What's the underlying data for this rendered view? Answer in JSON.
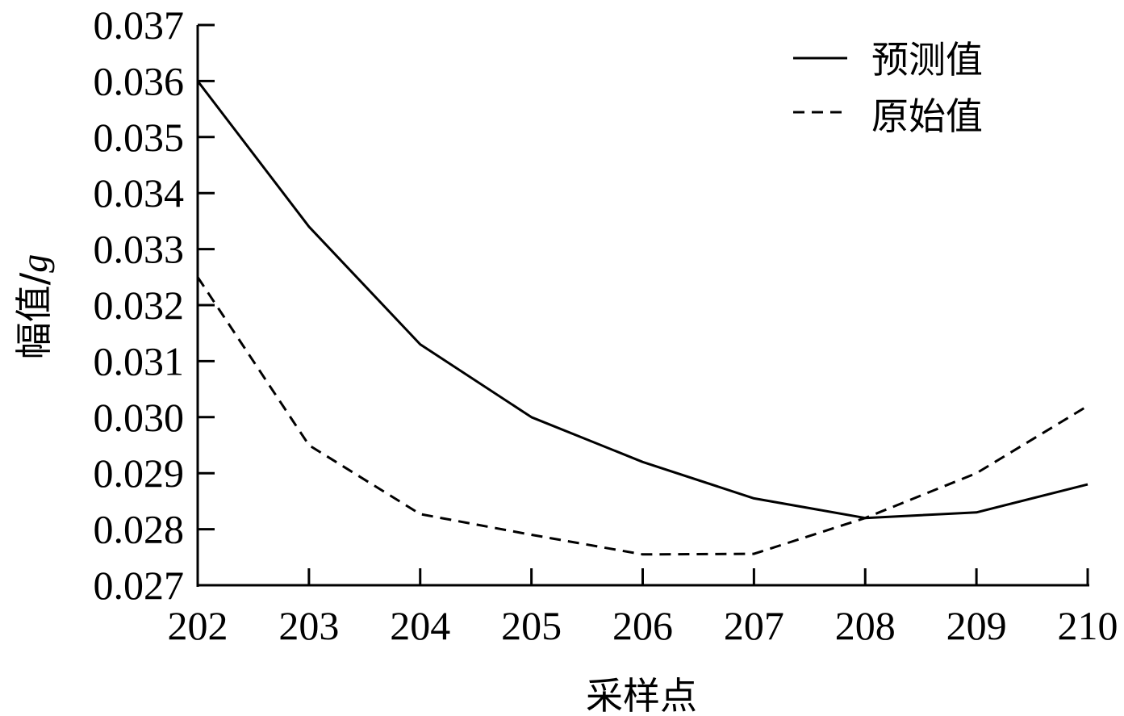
{
  "chart_data": {
    "type": "line",
    "title": "",
    "xlabel": "采样点",
    "ylabel": "幅值/g",
    "ylabel_main": "幅值/",
    "ylabel_unit": "g",
    "x": [
      202,
      203,
      204,
      205,
      206,
      207,
      208,
      209,
      210
    ],
    "xticks": [
      "202",
      "203",
      "204",
      "205",
      "206",
      "207",
      "208",
      "209",
      "210"
    ],
    "yticks": [
      "0.027",
      "0.028",
      "0.029",
      "0.030",
      "0.031",
      "0.032",
      "0.033",
      "0.034",
      "0.035",
      "0.036",
      "0.037"
    ],
    "xlim": [
      202,
      210
    ],
    "ylim": [
      0.027,
      0.037
    ],
    "grid": false,
    "legend_position": "upper right",
    "series": [
      {
        "name": "预测值",
        "style": "solid",
        "color": "#000000",
        "values": [
          0.036,
          0.0334,
          0.0313,
          0.03,
          0.0292,
          0.02855,
          0.0282,
          0.0283,
          0.0288
        ]
      },
      {
        "name": "原始值",
        "style": "dashed",
        "color": "#000000",
        "values": [
          0.0325,
          0.0295,
          0.02827,
          0.0279,
          0.02755,
          0.02756,
          0.0282,
          0.029,
          0.0302
        ]
      }
    ]
  }
}
